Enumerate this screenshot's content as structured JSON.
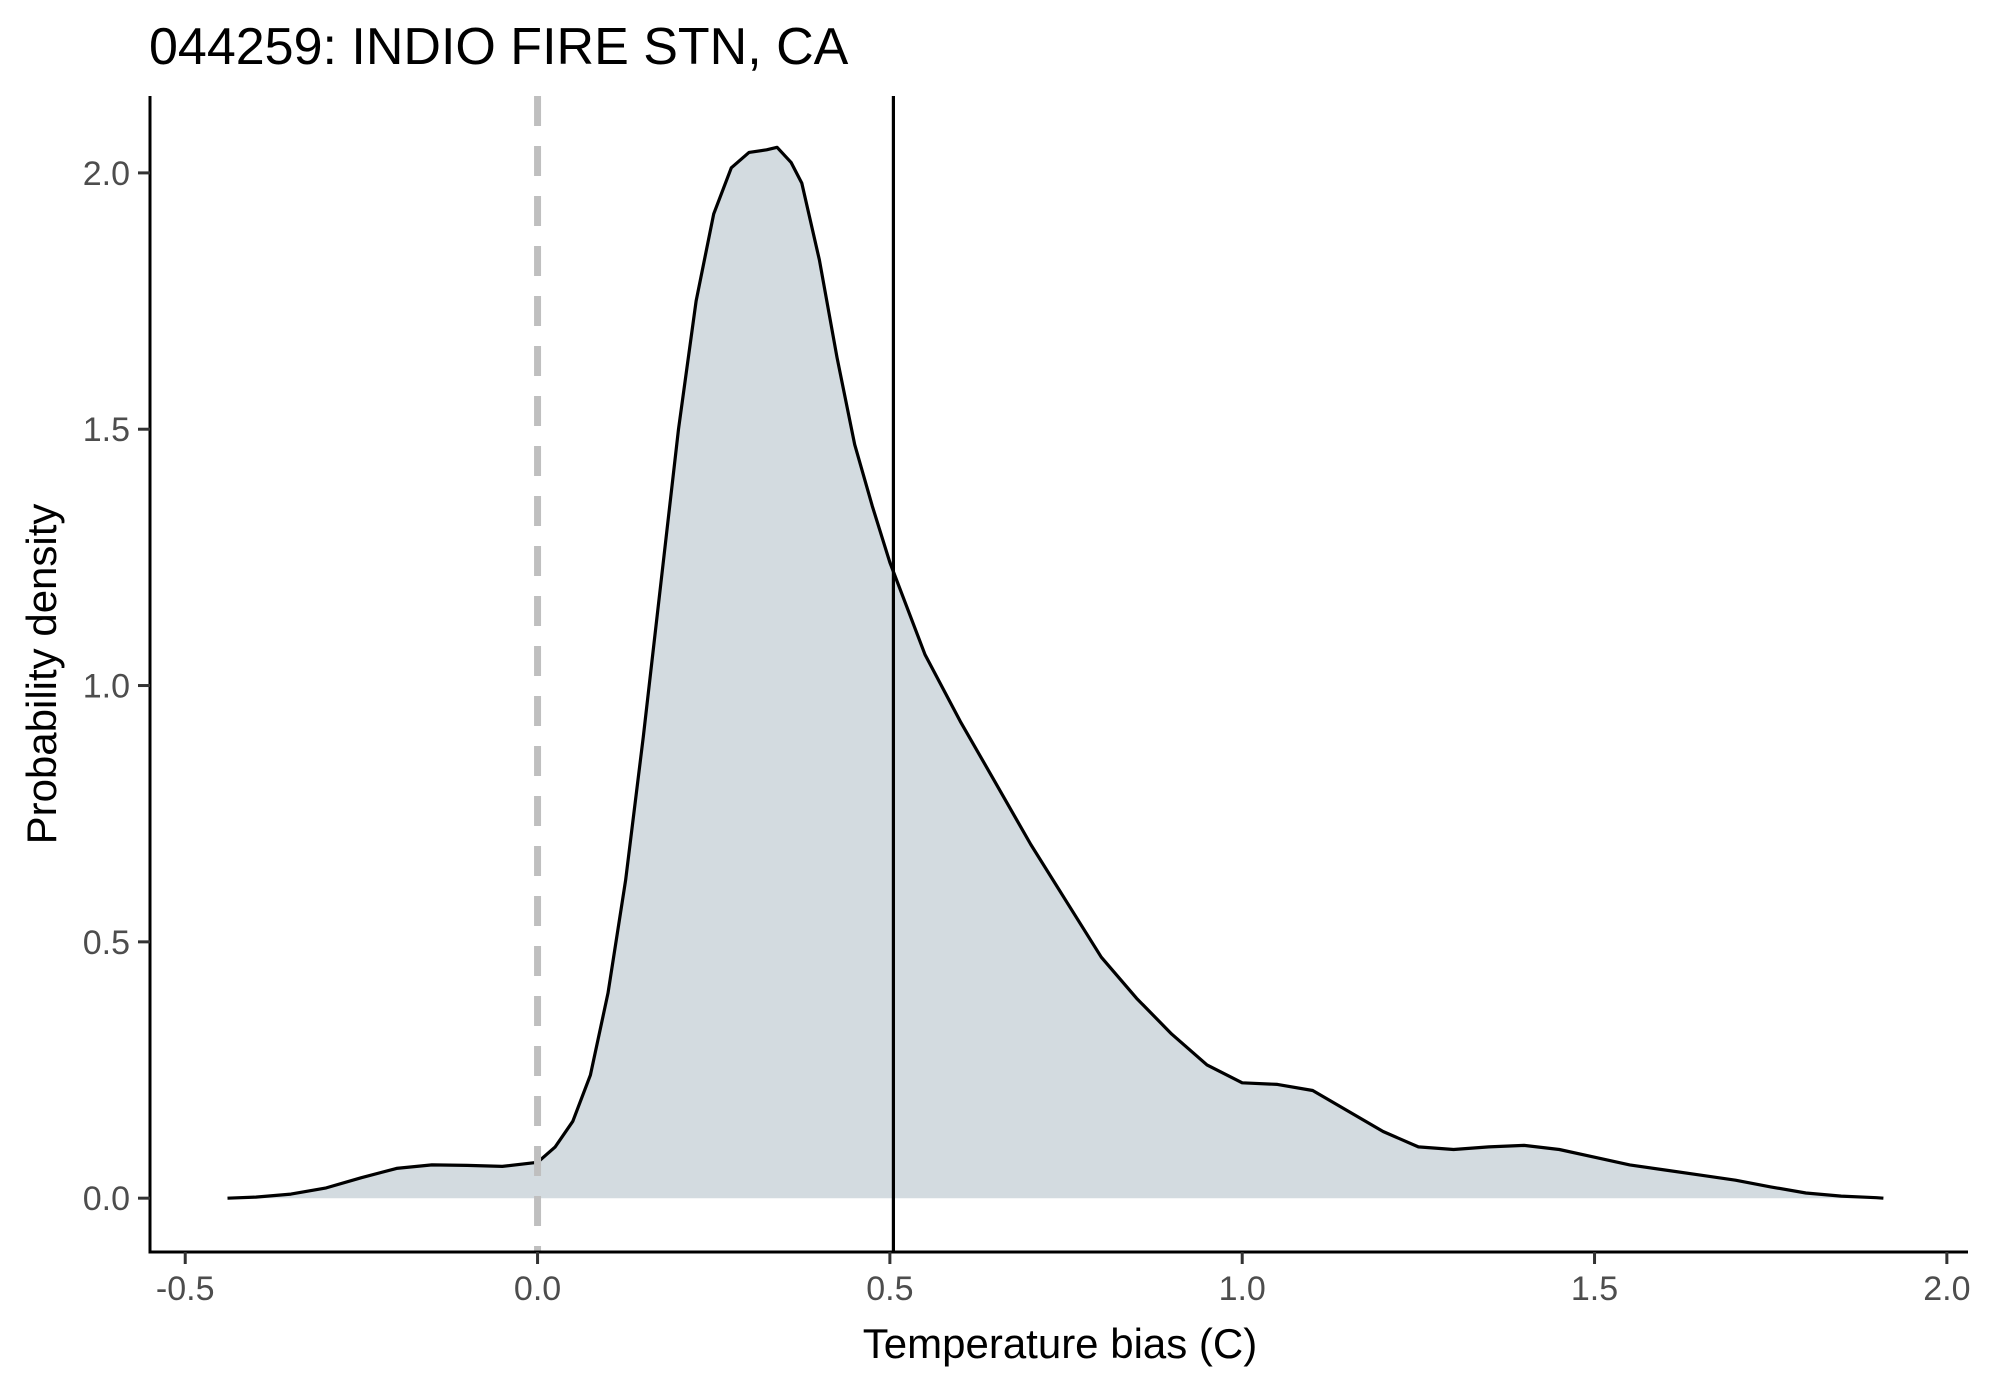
{
  "chart_data": {
    "type": "area",
    "title": "044259: INDIO FIRE STN, CA",
    "xlabel": "Temperature bias (C)",
    "ylabel": "Probability density",
    "xlim": [
      -0.55,
      2.03
    ],
    "ylim": [
      -0.105,
      2.15
    ],
    "x_ticks": [
      -0.5,
      0.0,
      0.5,
      1.0,
      1.5,
      2.0
    ],
    "x_tick_labels": [
      "-0.5",
      "0.0",
      "0.5",
      "1.0",
      "1.5",
      "2.0"
    ],
    "y_ticks": [
      0.0,
      0.5,
      1.0,
      1.5,
      2.0
    ],
    "y_tick_labels": [
      "0.0",
      "0.5",
      "1.0",
      "1.5",
      "2.0"
    ],
    "grid": false,
    "legend": "none",
    "series": [
      {
        "x": [
          -0.44,
          -0.4,
          -0.35,
          -0.3,
          -0.25,
          -0.2,
          -0.15,
          -0.1,
          -0.05,
          0.0,
          0.025,
          0.05,
          0.075,
          0.1,
          0.125,
          0.15,
          0.175,
          0.2,
          0.225,
          0.25,
          0.275,
          0.3,
          0.325,
          0.34,
          0.36,
          0.375,
          0.4,
          0.425,
          0.45,
          0.475,
          0.5,
          0.55,
          0.6,
          0.65,
          0.7,
          0.75,
          0.8,
          0.85,
          0.9,
          0.95,
          1.0,
          1.05,
          1.1,
          1.15,
          1.2,
          1.25,
          1.3,
          1.35,
          1.4,
          1.45,
          1.5,
          1.55,
          1.6,
          1.65,
          1.7,
          1.75,
          1.8,
          1.85,
          1.9,
          1.91
        ],
        "y": [
          0.0,
          0.002,
          0.008,
          0.02,
          0.04,
          0.058,
          0.065,
          0.064,
          0.062,
          0.07,
          0.1,
          0.15,
          0.24,
          0.4,
          0.62,
          0.9,
          1.2,
          1.5,
          1.75,
          1.92,
          2.01,
          2.04,
          2.045,
          2.05,
          2.02,
          1.98,
          1.83,
          1.64,
          1.47,
          1.35,
          1.24,
          1.06,
          0.93,
          0.81,
          0.69,
          0.58,
          0.47,
          0.39,
          0.32,
          0.26,
          0.225,
          0.222,
          0.21,
          0.17,
          0.13,
          0.1,
          0.095,
          0.1,
          0.103,
          0.095,
          0.08,
          0.065,
          0.055,
          0.045,
          0.035,
          0.022,
          0.01,
          0.004,
          0.001,
          0.0
        ],
        "fill": "#d3dbe0",
        "line_color": "#000000"
      }
    ],
    "reference_lines": [
      {
        "x": 0.0,
        "style": "dashed",
        "color": "#bfbfbf"
      },
      {
        "x": 0.505,
        "style": "solid",
        "color": "#000000"
      }
    ]
  }
}
